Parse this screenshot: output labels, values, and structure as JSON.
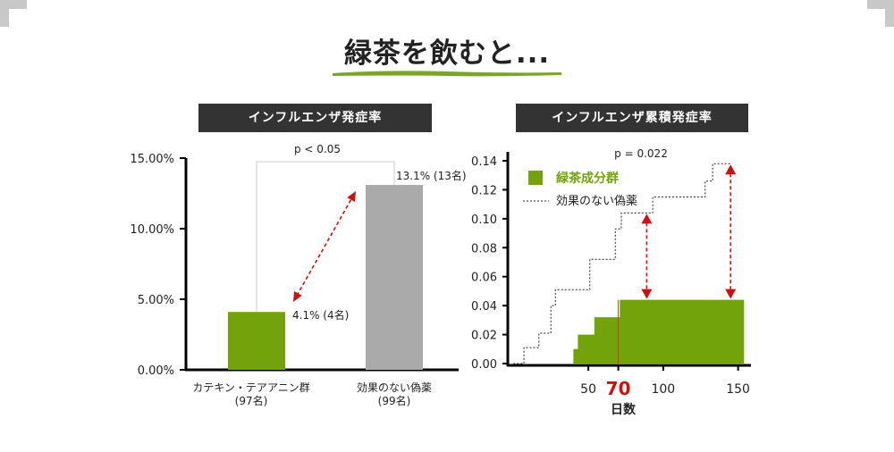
{
  "title": "緑茶を飲むと...",
  "colors": {
    "green": "#72a30b",
    "gray": "#aaaaaa",
    "red": "#cc1111",
    "dark": "#333333"
  },
  "chart_data": [
    {
      "type": "bar",
      "panel_label": "インフルエンザ発症率",
      "categories": [
        {
          "line1": "カテキン・テアアニン群",
          "line2": "(97名)"
        },
        {
          "line1": "効果のない偽薬",
          "line2": "(99名)"
        }
      ],
      "values": [
        4.1,
        13.1
      ],
      "value_labels": [
        "4.1% (4名)",
        "13.1% (13名)"
      ],
      "bar_colors": [
        "#72a30b",
        "#aaaaaa"
      ],
      "yticks": [
        "0.00%",
        "5.00%",
        "10.00%",
        "15.00%"
      ],
      "ylim": [
        0,
        15
      ],
      "significance": "p < 0.05"
    },
    {
      "type": "line",
      "panel_label": "インフルエンザ累積発症率",
      "xlabel": "日数",
      "xticks": [
        {
          "value": 50,
          "label": "50"
        },
        {
          "value": 70,
          "label": "70"
        },
        {
          "value": 100,
          "label": "100"
        },
        {
          "value": 150,
          "label": "150"
        }
      ],
      "xlim": [
        -2,
        158
      ],
      "yticks": [
        "0.00",
        "0.02",
        "0.04",
        "0.06",
        "0.08",
        "0.10",
        "0.12",
        "0.14"
      ],
      "ylim": [
        0,
        0.14
      ],
      "significance": "p = 0.022",
      "legend": [
        "緑茶成分群",
        "効果のない偽薬"
      ],
      "series": [
        {
          "name": "緑茶成分群",
          "style": "filled-step",
          "points": [
            [
              40,
              0
            ],
            [
              40,
              0.01
            ],
            [
              43,
              0.01
            ],
            [
              43,
              0.02
            ],
            [
              54,
              0.02
            ],
            [
              54,
              0.032
            ],
            [
              71,
              0.032
            ],
            [
              71,
              0.044
            ],
            [
              154,
              0.044
            ],
            [
              154,
              0
            ]
          ]
        },
        {
          "name": "効果のない偽薬",
          "style": "dotted-step",
          "points": [
            [
              0,
              0
            ],
            [
              7,
              0
            ],
            [
              7,
              0.011
            ],
            [
              17,
              0.011
            ],
            [
              17,
              0.021
            ],
            [
              25,
              0.021
            ],
            [
              25,
              0.04
            ],
            [
              28,
              0.04
            ],
            [
              28,
              0.051
            ],
            [
              51,
              0.051
            ],
            [
              51,
              0.072
            ],
            [
              68,
              0.072
            ],
            [
              68,
              0.093
            ],
            [
              72,
              0.093
            ],
            [
              72,
              0.104
            ],
            [
              93,
              0.104
            ],
            [
              93,
              0.115
            ],
            [
              128,
              0.115
            ],
            [
              128,
              0.126
            ],
            [
              133,
              0.126
            ],
            [
              133,
              0.138
            ],
            [
              145,
              0.138
            ]
          ]
        }
      ],
      "arrows_x": [
        89,
        145
      ]
    }
  ]
}
